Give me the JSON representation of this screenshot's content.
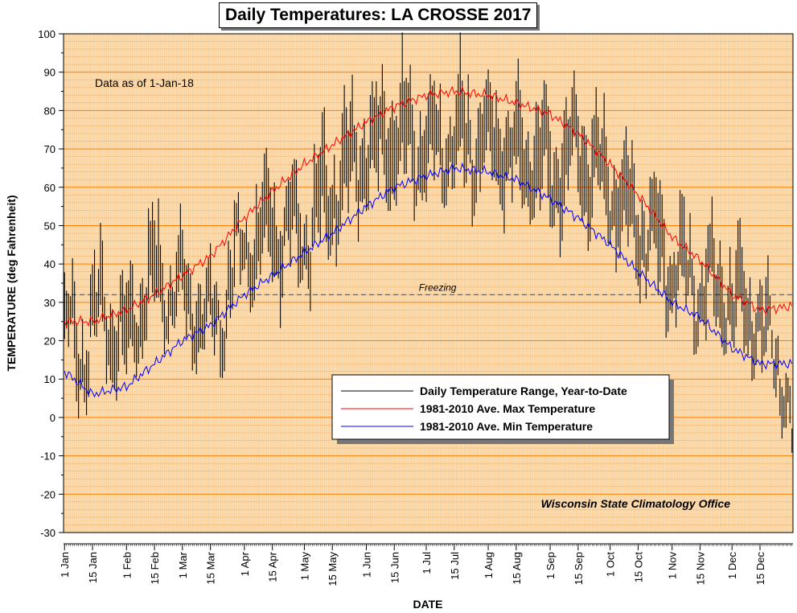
{
  "chart_data": {
    "type": "line",
    "title": "Daily Temperatures: LA CROSSE 2017",
    "xlabel": "DATE",
    "ylabel": "TEMPERATURE (deg Fahrenheit)",
    "ylim": [
      -30,
      100
    ],
    "yticks": [
      -30,
      -20,
      -10,
      0,
      10,
      20,
      30,
      40,
      50,
      60,
      70,
      80,
      90,
      100
    ],
    "xticks": [
      {
        "day": 1,
        "label": "1 Jan"
      },
      {
        "day": 15,
        "label": "15 Jan"
      },
      {
        "day": 32,
        "label": "1 Feb"
      },
      {
        "day": 46,
        "label": "15 Feb"
      },
      {
        "day": 60,
        "label": "1 Mar"
      },
      {
        "day": 74,
        "label": "15 Mar"
      },
      {
        "day": 91,
        "label": "1 Apr"
      },
      {
        "day": 105,
        "label": "15 Apr"
      },
      {
        "day": 121,
        "label": "1 May"
      },
      {
        "day": 135,
        "label": "15 May"
      },
      {
        "day": 152,
        "label": "1 Jun"
      },
      {
        "day": 166,
        "label": "15 Jun"
      },
      {
        "day": 182,
        "label": "1 Jul"
      },
      {
        "day": 196,
        "label": "15 Jul"
      },
      {
        "day": 213,
        "label": "1 Aug"
      },
      {
        "day": 227,
        "label": "15 Aug"
      },
      {
        "day": 244,
        "label": "1 Sep"
      },
      {
        "day": 258,
        "label": "15 Sep"
      },
      {
        "day": 274,
        "label": "1 Oct"
      },
      {
        "day": 288,
        "label": "15 Oct"
      },
      {
        "day": 305,
        "label": "1 Nov"
      },
      {
        "day": 319,
        "label": "15 Nov"
      },
      {
        "day": 335,
        "label": "1 Dec"
      },
      {
        "day": 349,
        "label": "15 Dec"
      }
    ],
    "annotations": {
      "data_as_of": "Data as of 1-Jan-18",
      "freezing_label": "Freezing",
      "freezing_value": 32,
      "credit": "Wisconsin State Climatology Office"
    },
    "legend": {
      "position": "lower-middle",
      "entries": [
        {
          "label": "Daily Temperature Range, Year-to-Date",
          "color": "#000000"
        },
        {
          "label": "1981-2010 Ave. Max Temperature",
          "color": "#ff0000"
        },
        {
          "label": "1981-2010 Ave. Min Temperature",
          "color": "#0000ff"
        }
      ]
    },
    "colors": {
      "plot_background": "#fbdcb0",
      "major_grid": "#ff7f00",
      "minor_grid": "#f5b46a",
      "range_bars": "#000000",
      "avg_max": "#ff0000",
      "avg_min": "#0000ff",
      "freezing_line": "#555555"
    },
    "range_keypoints": {
      "days": [
        1,
        10,
        18,
        30,
        45,
        60,
        75,
        91,
        105,
        121,
        135,
        152,
        166,
        182,
        196,
        213,
        227,
        244,
        258,
        274,
        288,
        305,
        319,
        335,
        349,
        360,
        365
      ],
      "high_mean": [
        28,
        24,
        35,
        28,
        45,
        40,
        30,
        52,
        58,
        55,
        70,
        78,
        82,
        80,
        82,
        80,
        78,
        73,
        80,
        68,
        60,
        45,
        42,
        38,
        30,
        22,
        -2
      ],
      "low_mean": [
        16,
        8,
        22,
        12,
        26,
        24,
        17,
        37,
        40,
        38,
        50,
        60,
        62,
        63,
        64,
        62,
        60,
        56,
        60,
        50,
        42,
        30,
        27,
        24,
        17,
        8,
        -8
      ]
    },
    "series": [
      {
        "name": "1981-2010 Ave. Max Temperature",
        "days": [
          1,
          15,
          32,
          46,
          60,
          74,
          91,
          105,
          121,
          135,
          152,
          166,
          182,
          196,
          213,
          227,
          244,
          258,
          274,
          288,
          305,
          319,
          335,
          349,
          365
        ],
        "values": [
          25,
          25,
          28,
          32,
          37,
          42,
          52,
          59,
          66,
          71,
          77,
          81,
          84,
          85,
          84,
          82,
          79,
          74,
          66,
          58,
          47,
          41,
          32,
          28,
          29
        ]
      },
      {
        "name": "1981-2010 Ave. Min Temperature",
        "days": [
          1,
          15,
          32,
          46,
          60,
          74,
          91,
          105,
          121,
          135,
          152,
          166,
          182,
          196,
          213,
          227,
          244,
          258,
          274,
          288,
          305,
          319,
          335,
          349,
          365
        ],
        "values": [
          12,
          6,
          8,
          14,
          20,
          24,
          32,
          37,
          43,
          48,
          55,
          60,
          63,
          65,
          64,
          62,
          57,
          52,
          45,
          38,
          30,
          26,
          18,
          14,
          14
        ]
      }
    ]
  }
}
